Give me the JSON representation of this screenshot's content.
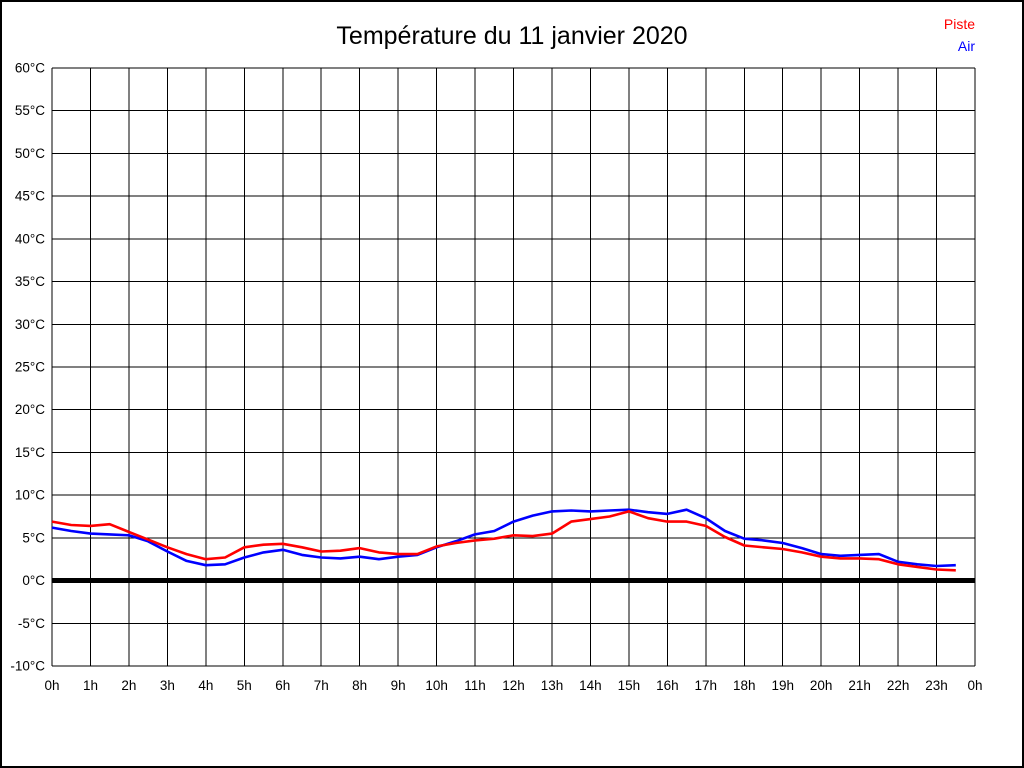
{
  "page": {
    "background": "#ffffff",
    "border_color": "#000000"
  },
  "header": {
    "title": "Température du 11 janvier 2020"
  },
  "legend": {
    "position": "top-right",
    "items": [
      {
        "label": "Piste",
        "color": "#ff0000"
      },
      {
        "label": "Air",
        "color": "#0000ff"
      }
    ]
  },
  "chart_data": {
    "type": "line",
    "title": "Température du 11 janvier 2020",
    "xlabel": "",
    "ylabel": "",
    "x_unit": "hours",
    "xlim": [
      0,
      24
    ],
    "ylim": [
      -10,
      60
    ],
    "grid": true,
    "grid_color": "#000000",
    "zero_line": {
      "value": 0,
      "color": "#000000",
      "width": 5
    },
    "line_width": 2.6,
    "x": [
      0,
      0.5,
      1,
      1.5,
      2,
      2.5,
      3,
      3.5,
      4,
      4.5,
      5,
      5.5,
      6,
      6.5,
      7,
      7.5,
      8,
      8.5,
      9,
      9.5,
      10,
      10.5,
      11,
      11.5,
      12,
      12.5,
      13,
      13.5,
      14,
      14.5,
      15,
      15.5,
      16,
      16.5,
      17,
      17.5,
      18,
      18.5,
      19,
      19.5,
      20,
      20.5,
      21,
      21.5,
      22,
      22.5,
      23,
      23.5
    ],
    "series": [
      {
        "name": "Piste",
        "color": "#ff0000",
        "values": [
          6.9,
          6.5,
          6.4,
          6.6,
          5.7,
          4.8,
          3.9,
          3.1,
          2.5,
          2.7,
          3.9,
          4.2,
          4.3,
          3.9,
          3.4,
          3.5,
          3.8,
          3.3,
          3.1,
          3.1,
          4.0,
          4.4,
          4.7,
          4.9,
          5.3,
          5.2,
          5.5,
          6.9,
          7.2,
          7.5,
          8.1,
          7.3,
          6.9,
          6.9,
          6.4,
          5.1,
          4.1,
          3.9,
          3.7,
          3.3,
          2.8,
          2.6,
          2.6,
          2.5,
          1.9,
          1.6,
          1.3,
          1.2
        ]
      },
      {
        "name": "Air",
        "color": "#0000ff",
        "values": [
          6.2,
          5.8,
          5.5,
          5.4,
          5.3,
          4.6,
          3.4,
          2.3,
          1.8,
          1.9,
          2.7,
          3.3,
          3.6,
          3.0,
          2.7,
          2.6,
          2.8,
          2.5,
          2.8,
          3.0,
          3.9,
          4.6,
          5.4,
          5.8,
          6.9,
          7.6,
          8.1,
          8.2,
          8.1,
          8.2,
          8.3,
          8.0,
          7.8,
          8.3,
          7.3,
          5.8,
          4.9,
          4.7,
          4.4,
          3.8,
          3.1,
          2.9,
          3.0,
          3.1,
          2.2,
          1.9,
          1.7,
          1.8
        ]
      }
    ],
    "yticks": [
      {
        "v": 60,
        "label": "60°C"
      },
      {
        "v": 55,
        "label": "55°C"
      },
      {
        "v": 50,
        "label": "50°C"
      },
      {
        "v": 45,
        "label": "45°C"
      },
      {
        "v": 40,
        "label": "40°C"
      },
      {
        "v": 35,
        "label": "35°C"
      },
      {
        "v": 30,
        "label": "30°C"
      },
      {
        "v": 25,
        "label": "25°C"
      },
      {
        "v": 20,
        "label": "20°C"
      },
      {
        "v": 15,
        "label": "15°C"
      },
      {
        "v": 10,
        "label": "10°C"
      },
      {
        "v": 5,
        "label": "5°C"
      },
      {
        "v": 0,
        "label": "0°C"
      },
      {
        "v": -5,
        "label": "-5°C"
      },
      {
        "v": -10,
        "label": "-10°C"
      }
    ],
    "xticks": [
      {
        "h": 0,
        "label": "0h"
      },
      {
        "h": 1,
        "label": "1h"
      },
      {
        "h": 2,
        "label": "2h"
      },
      {
        "h": 3,
        "label": "3h"
      },
      {
        "h": 4,
        "label": "4h"
      },
      {
        "h": 5,
        "label": "5h"
      },
      {
        "h": 6,
        "label": "6h"
      },
      {
        "h": 7,
        "label": "7h"
      },
      {
        "h": 8,
        "label": "8h"
      },
      {
        "h": 9,
        "label": "9h"
      },
      {
        "h": 10,
        "label": "10h"
      },
      {
        "h": 11,
        "label": "11h"
      },
      {
        "h": 12,
        "label": "12h"
      },
      {
        "h": 13,
        "label": "13h"
      },
      {
        "h": 14,
        "label": "14h"
      },
      {
        "h": 15,
        "label": "15h"
      },
      {
        "h": 16,
        "label": "16h"
      },
      {
        "h": 17,
        "label": "17h"
      },
      {
        "h": 18,
        "label": "18h"
      },
      {
        "h": 19,
        "label": "19h"
      },
      {
        "h": 20,
        "label": "20h"
      },
      {
        "h": 21,
        "label": "21h"
      },
      {
        "h": 22,
        "label": "22h"
      },
      {
        "h": 23,
        "label": "23h"
      },
      {
        "h": 24,
        "label": "0h"
      }
    ],
    "legend_position": "top-right"
  }
}
